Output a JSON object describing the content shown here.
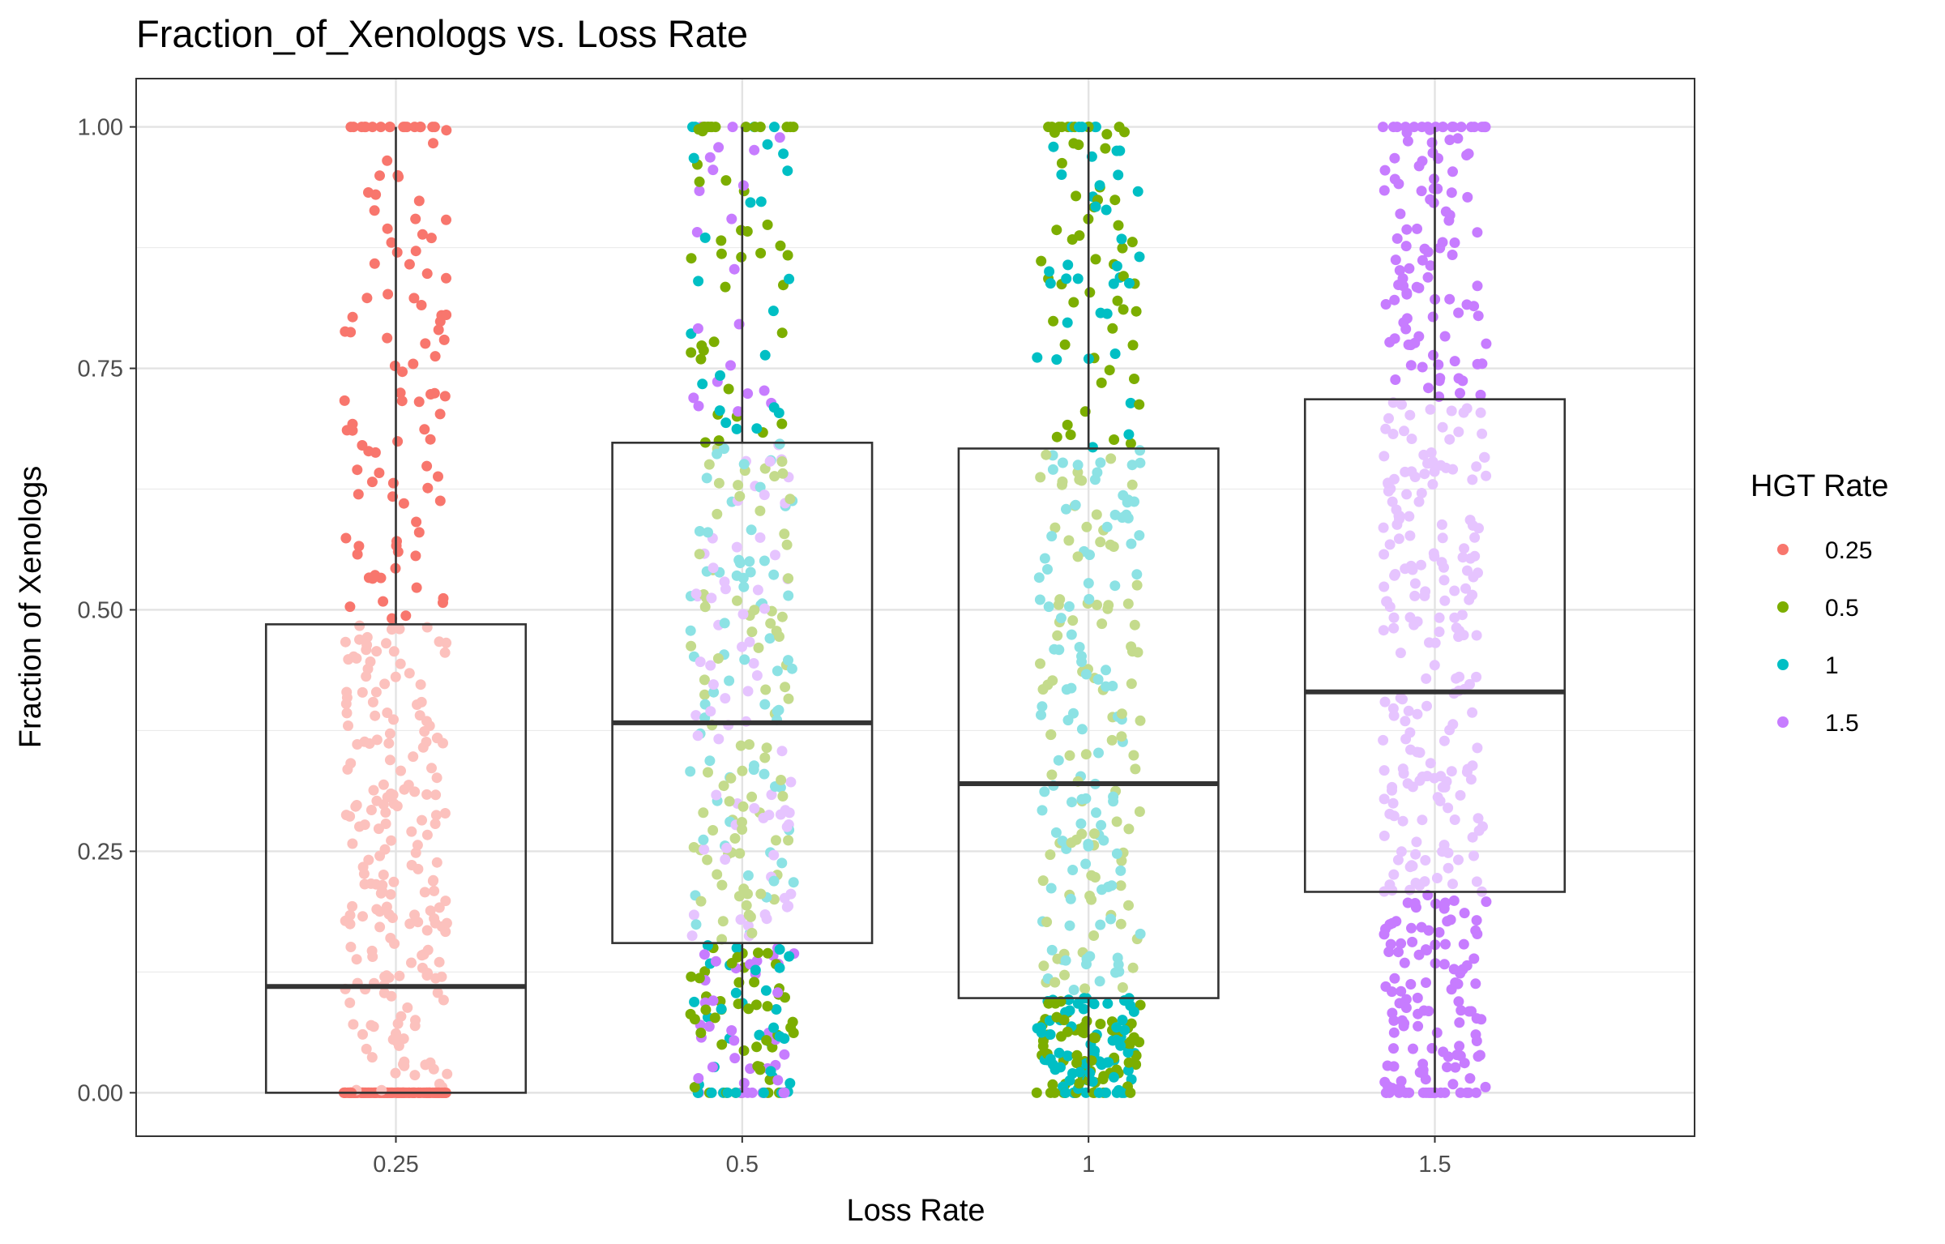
{
  "chart_data": {
    "type": "boxplot",
    "title": "Fraction_of_Xenologs vs. Loss Rate",
    "xlabel": "Loss Rate",
    "ylabel": "Fraction of Xenologs",
    "categories": [
      "0.25",
      "0.5",
      "1",
      "1.5"
    ],
    "yticks": [
      "0.00",
      "0.25",
      "0.50",
      "0.75",
      "1.00"
    ],
    "ylim": [
      -0.045,
      1.05
    ],
    "grid": true,
    "legend": {
      "title": "HGT Rate",
      "placement": "right",
      "items": [
        {
          "label": "0.25",
          "color": "#F8766D"
        },
        {
          "label": "0.5",
          "color": "#7CAE00"
        },
        {
          "label": "1",
          "color": "#00BFC4"
        },
        {
          "label": "1.5",
          "color": "#C77CFF"
        }
      ]
    },
    "boxes": [
      {
        "category": "0.25",
        "q1": 0.0,
        "median": 0.11,
        "q3": 0.485,
        "whisker_low": 0.0,
        "whisker_high": 1.0
      },
      {
        "category": "0.5",
        "q1": 0.155,
        "median": 0.383,
        "q3": 0.673,
        "whisker_low": 0.0,
        "whisker_high": 1.0
      },
      {
        "category": "1",
        "q1": 0.098,
        "median": 0.32,
        "q3": 0.667,
        "whisker_low": 0.0,
        "whisker_high": 1.0
      },
      {
        "category": "1.5",
        "q1": 0.208,
        "median": 0.415,
        "q3": 0.718,
        "whisker_low": 0.0,
        "whisker_high": 1.0
      }
    ],
    "point_groups": [
      {
        "category": "0.25",
        "series": [
          "0.25"
        ]
      },
      {
        "category": "0.5",
        "series": [
          "0.5",
          "1",
          "1.5"
        ]
      },
      {
        "category": "1",
        "series": [
          "0.5",
          "1"
        ]
      },
      {
        "category": "1.5",
        "series": [
          "1.5"
        ]
      }
    ]
  }
}
